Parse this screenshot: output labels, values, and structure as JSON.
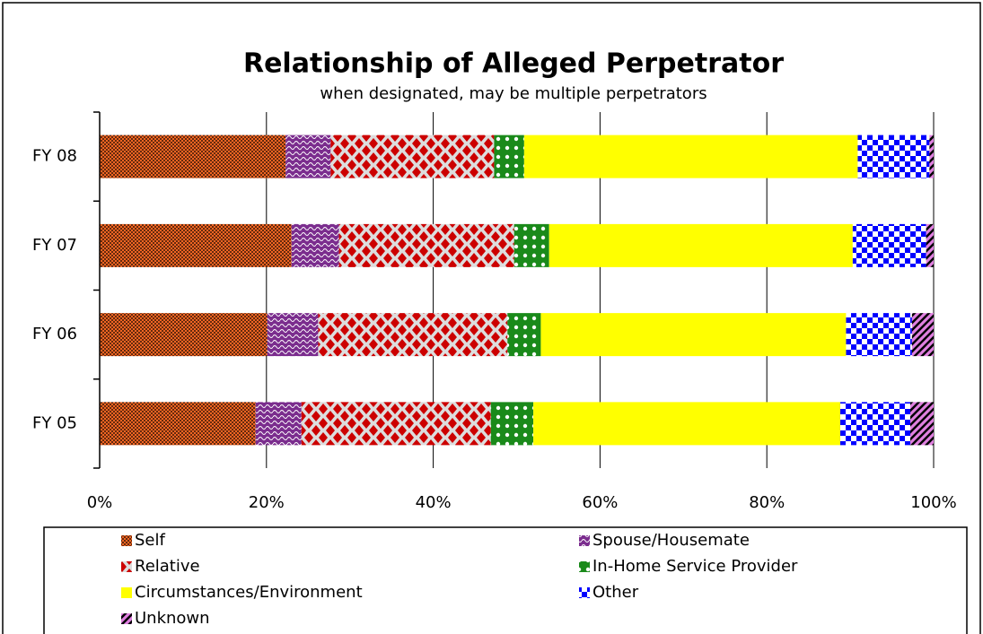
{
  "chart_data": {
    "type": "stacked_barh",
    "title": "Relationship of Alleged Perpetrator",
    "subtitle": "when designated, may be multiple perpetrators",
    "categories": [
      "FY 05",
      "FY 06",
      "FY 07",
      "FY 08"
    ],
    "series": [
      {
        "name": "Self",
        "color": "#f26522",
        "values": [
          18.7,
          20.1,
          23.0,
          22.3
        ]
      },
      {
        "name": "Spouse/Housemate",
        "color": "#7b2d8e",
        "values": [
          5.5,
          6.1,
          5.7,
          5.4
        ]
      },
      {
        "name": "Relative",
        "color": "#cc0000",
        "values": [
          22.7,
          22.7,
          21.0,
          19.6
        ]
      },
      {
        "name": "In-Home Service Provider",
        "color": "#1a8a1a",
        "values": [
          5.1,
          4.0,
          4.2,
          3.6
        ]
      },
      {
        "name": "Circumstances/Environment",
        "color": "#ffff00",
        "values": [
          36.8,
          36.6,
          36.4,
          40.0
        ]
      },
      {
        "name": "Other",
        "color": "#0000ff",
        "values": [
          8.4,
          7.9,
          8.8,
          8.6
        ]
      },
      {
        "name": "Unknown",
        "color": "#e080e0",
        "values": [
          2.8,
          2.6,
          0.9,
          0.5
        ]
      }
    ],
    "xlim": [
      0,
      100
    ],
    "xticks": [
      {
        "value": 0,
        "label": "0%"
      },
      {
        "value": 20,
        "label": "20%"
      },
      {
        "value": 40,
        "label": "40%"
      },
      {
        "value": 60,
        "label": "60%"
      },
      {
        "value": 80,
        "label": "80%"
      },
      {
        "value": 100,
        "label": "100%"
      }
    ],
    "grid": true
  }
}
